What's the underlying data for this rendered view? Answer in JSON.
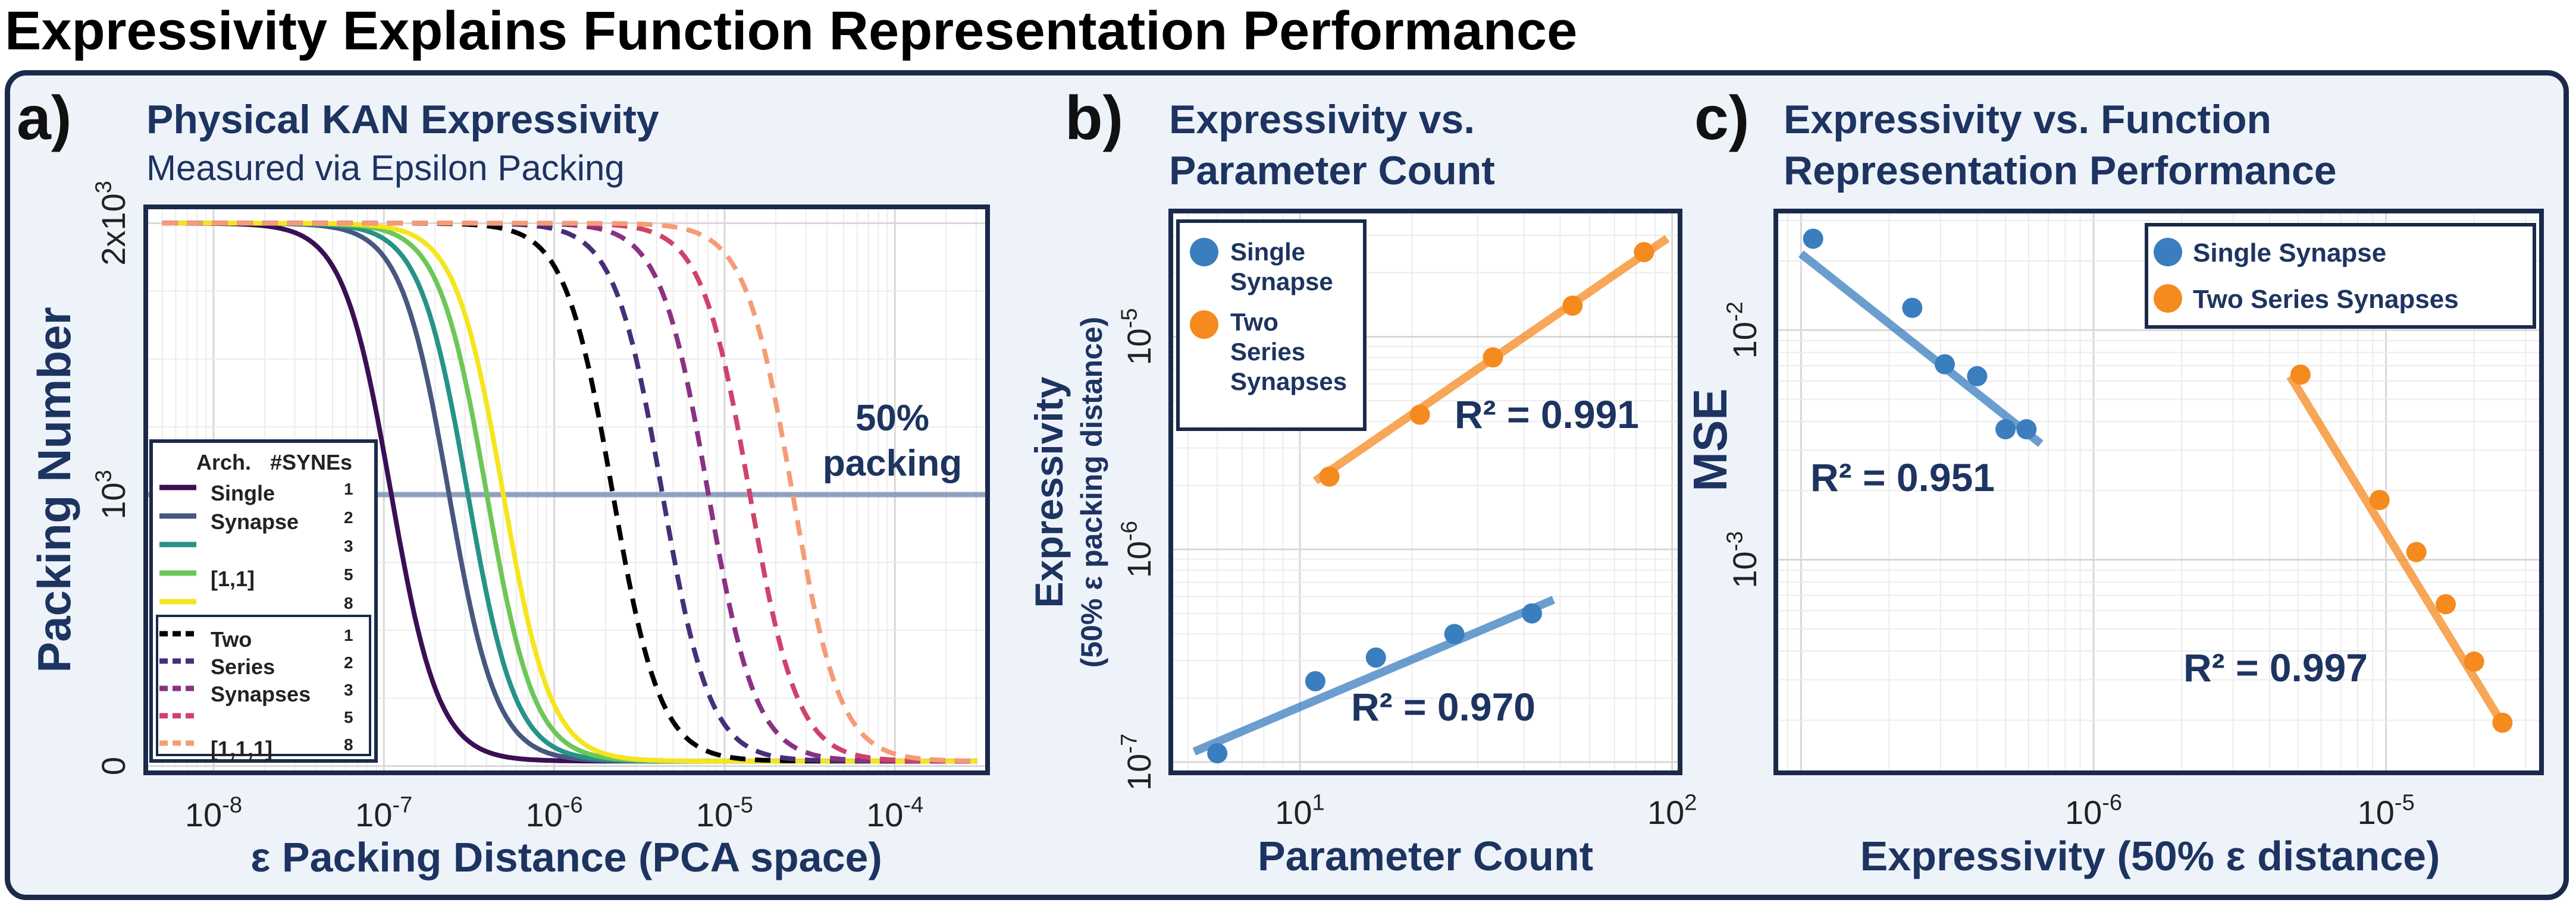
{
  "title": "Expressivity Explains Function Representation Performance",
  "colors": {
    "navy": "#1d3461",
    "frame": "#1b2a4a",
    "blue": "#3a7ebf",
    "orange": "#f58a1f",
    "panel_bg": "#eef3fa"
  },
  "chart_data": [
    {
      "panel": "a)",
      "type": "line",
      "title": "Physical KAN Expressivity",
      "subtitle": "Measured via Epsilon Packing",
      "xlabel": "ε Packing Distance (PCA space)",
      "ylabel": "Packing Number",
      "xscale": "log",
      "xlim": [
        4e-09,
        0.00035
      ],
      "ylim": [
        0,
        2000
      ],
      "xticks": [
        1e-08,
        1e-07,
        1e-06,
        1e-05,
        0.0001
      ],
      "xtick_labels": [
        [
          "10",
          "-8"
        ],
        [
          "10",
          "-7"
        ],
        [
          "10",
          "-6"
        ],
        [
          "10",
          "-5"
        ],
        [
          "10",
          "-4"
        ]
      ],
      "ytick_labels": [
        {
          "v": 0,
          "base": "0",
          "exp": ""
        },
        {
          "v": 1000,
          "base": "10",
          "exp": "3"
        },
        {
          "v": 2000,
          "base": "2x10",
          "exp": "3"
        }
      ],
      "grid": true,
      "hline": {
        "y": 1000,
        "label_line1": "50%",
        "label_line2": "packing",
        "color": "#7b8fb5"
      },
      "series": [
        {
          "name": "1",
          "group": "single",
          "midpoint": 1.1e-07,
          "color": "#3b0f54",
          "dash": false
        },
        {
          "name": "2",
          "group": "single",
          "midpoint": 2.4e-07,
          "color": "#48577f",
          "dash": false
        },
        {
          "name": "3",
          "group": "single",
          "midpoint": 3.1e-07,
          "color": "#269388",
          "dash": false
        },
        {
          "name": "5",
          "group": "single",
          "midpoint": 4e-07,
          "color": "#6cc757",
          "dash": false
        },
        {
          "name": "8",
          "group": "single",
          "midpoint": 5e-07,
          "color": "#f5e51e",
          "dash": false
        },
        {
          "name": "1",
          "group": "series",
          "midpoint": 2.2e-06,
          "color": "#000000",
          "dash": true
        },
        {
          "name": "2",
          "group": "series",
          "midpoint": 4.3e-06,
          "color": "#462f78",
          "dash": true
        },
        {
          "name": "3",
          "group": "series",
          "midpoint": 8e-06,
          "color": "#8a3184",
          "dash": true
        },
        {
          "name": "5",
          "group": "series",
          "midpoint": 1.4e-05,
          "color": "#d0426a",
          "dash": true
        },
        {
          "name": "8",
          "group": "series",
          "midpoint": 2.5e-05,
          "color": "#f59c76",
          "dash": true
        }
      ],
      "legend": {
        "header_arch": "Arch.",
        "header_synes": "#SYNEs",
        "single_labels": [
          "Single",
          "Synapse",
          "",
          "[1,1]",
          ""
        ],
        "series_labels": [
          "Two",
          "Series",
          "Synapses",
          "",
          "[1,1,1]"
        ],
        "placement": "lower-left"
      }
    },
    {
      "panel": "b)",
      "type": "scatter",
      "title_line1": "Expressivity vs.",
      "title_line2": "Parameter Count",
      "xlabel": "Parameter Count",
      "ylabel_line1": "Expressivity",
      "ylabel_line2": "(50% ε packing distance)",
      "xscale": "log",
      "yscale": "log",
      "xlim": [
        4.5,
        105
      ],
      "ylim": [
        8.9e-08,
        3.9e-05
      ],
      "xtick_labels": [
        {
          "v": 10,
          "base": "10",
          "exp": "1"
        },
        {
          "v": 100,
          "base": "10",
          "exp": "2"
        }
      ],
      "ytick_labels": [
        {
          "v": 1e-07,
          "base": "10",
          "exp": "-7"
        },
        {
          "v": 1e-06,
          "base": "10",
          "exp": "-6"
        },
        {
          "v": 1e-05,
          "base": "10",
          "exp": "-5"
        }
      ],
      "grid": true,
      "series": [
        {
          "name": "Single Synapse",
          "color": "#3a7ebf",
          "x": [
            6,
            11,
            16,
            26,
            42
          ],
          "y": [
            1.1e-07,
            2.4e-07,
            3.1e-07,
            4e-07,
            5e-07
          ],
          "fit": {
            "x": [
              5.2,
              48
            ],
            "y": [
              1.12e-07,
              5.8e-07
            ]
          }
        },
        {
          "name": "Two Series Synapses",
          "color": "#f58a1f",
          "x": [
            12,
            21,
            33,
            54,
            84
          ],
          "y": [
            2.2e-06,
            4.3e-06,
            8e-06,
            1.4e-05,
            2.5e-05
          ],
          "fit": {
            "x": [
              11,
              97
            ],
            "y": [
              2.1e-06,
              2.9e-05
            ]
          }
        }
      ],
      "annotations": [
        "R² = 0.991",
        "R² = 0.970"
      ],
      "legend": {
        "lines": [
          [
            "Single",
            "Synapse"
          ],
          [
            "Two",
            "Series",
            "Synapses"
          ]
        ],
        "placement": "top-left"
      }
    },
    {
      "panel": "c)",
      "type": "scatter",
      "title_line1": "Expressivity vs. Function",
      "title_line2": "Representation Performance",
      "xlabel": "Expressivity (50% ε distance)",
      "ylabel": "MSE",
      "xscale": "log",
      "yscale": "log",
      "xlim": [
        8.2e-08,
        3.4e-05
      ],
      "ylim": [
        0.000118,
        0.033
      ],
      "xtick_labels": [
        {
          "v": 1e-06,
          "base": "10",
          "exp": "-6"
        },
        {
          "v": 1e-05,
          "base": "10",
          "exp": "-5"
        }
      ],
      "ytick_labels": [
        {
          "v": 0.001,
          "base": "10",
          "exp": "-3"
        },
        {
          "v": 0.01,
          "base": "10",
          "exp": "-2"
        }
      ],
      "grid": true,
      "series": [
        {
          "name": "Single Synapse",
          "color": "#3a7ebf",
          "x": [
            1.1e-07,
            2.4e-07,
            3.1e-07,
            4e-07,
            5e-07,
            5.9e-07
          ],
          "y": [
            0.025,
            0.0125,
            0.0071,
            0.0063,
            0.0037,
            0.0037
          ],
          "fit": {
            "x": [
              1e-07,
              6.6e-07
            ],
            "y": [
              0.0215,
              0.0032
            ]
          }
        },
        {
          "name": "Two Series Synapses",
          "color": "#f58a1f",
          "x": [
            5.1e-06,
            9.5e-06,
            1.27e-05,
            1.6e-05,
            2e-05,
            2.5e-05
          ],
          "y": [
            0.0064,
            0.00182,
            0.00108,
            0.00064,
            0.00036,
            0.000195
          ],
          "fit": {
            "x": [
              4.7e-06,
              2.55e-05
            ],
            "y": [
              0.0063,
              0.000185
            ]
          }
        }
      ],
      "annotations": [
        "R² = 0.951",
        "R² = 0.997"
      ],
      "legend": {
        "lines": [
          [
            "Single Synapse"
          ],
          [
            "Two Series Synapses"
          ]
        ],
        "placement": "top-right"
      }
    }
  ]
}
